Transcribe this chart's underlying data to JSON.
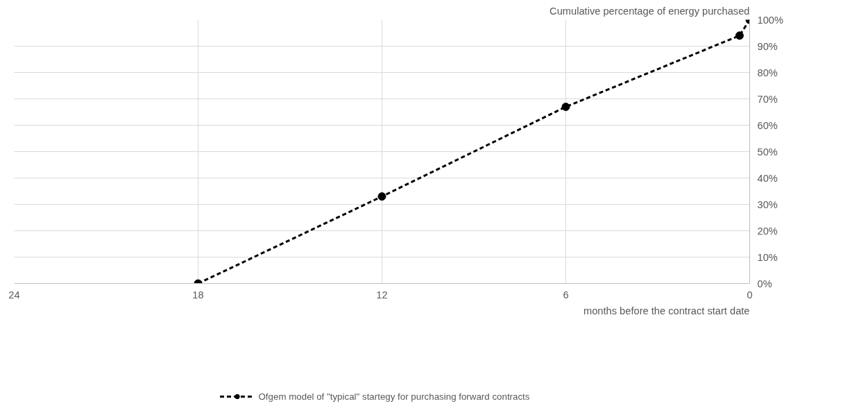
{
  "chart_data": {
    "type": "line",
    "xlabel": "months before the contract start date",
    "ylabel": "Cumulative percentage of energy purchased",
    "x": [
      18,
      12,
      6,
      0.33,
      0
    ],
    "series": [
      {
        "name": "Ofgem model of \"typical\" startegy for purchasing forward contracts",
        "color": "#000000",
        "values": [
          0,
          33,
          67,
          94,
          100
        ]
      }
    ],
    "xlim": [
      24,
      0
    ],
    "xticks": [
      24,
      18,
      12,
      6,
      0
    ],
    "ylim": [
      0,
      100
    ],
    "yticks": [
      {
        "value": 0,
        "label": "0%"
      },
      {
        "value": 10,
        "label": "10%"
      },
      {
        "value": 20,
        "label": "20%"
      },
      {
        "value": 30,
        "label": "30%"
      },
      {
        "value": 40,
        "label": "40%"
      },
      {
        "value": 50,
        "label": "50%"
      },
      {
        "value": 60,
        "label": "60%"
      },
      {
        "value": 70,
        "label": "70%"
      },
      {
        "value": 80,
        "label": "80%"
      },
      {
        "value": 90,
        "label": "90%"
      },
      {
        "value": 100,
        "label": "100%"
      }
    ],
    "grid": true,
    "legend": "bottom",
    "marker": "circle",
    "line_style": "dashed"
  }
}
